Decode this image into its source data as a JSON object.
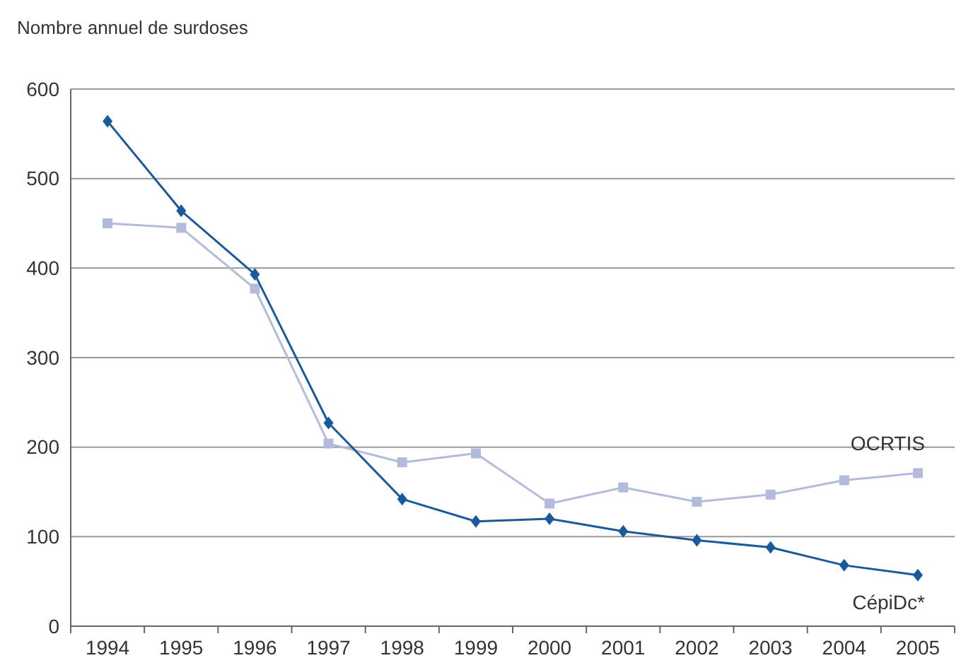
{
  "chart_data": {
    "type": "line",
    "ylabel": "Nombre annuel de surdoses",
    "categories": [
      "1994",
      "1995",
      "1996",
      "1997",
      "1998",
      "1999",
      "2000",
      "2001",
      "2002",
      "2003",
      "2004",
      "2005"
    ],
    "series": [
      {
        "name": "OCRTIS",
        "color": "#b3bbdd",
        "marker": "square",
        "values": [
          450,
          445,
          377,
          204,
          183,
          193,
          137,
          155,
          139,
          147,
          163,
          171
        ]
      },
      {
        "name": "CépiDc*",
        "color": "#1a5a9a",
        "marker": "diamond",
        "values": [
          564,
          464,
          393,
          227,
          142,
          117,
          120,
          106,
          96,
          88,
          68,
          57
        ]
      }
    ],
    "ylim": [
      0,
      600
    ],
    "yticks": [
      0,
      100,
      200,
      300,
      400,
      500,
      600
    ],
    "grid": "y",
    "legend": false,
    "line_style": "solid"
  }
}
